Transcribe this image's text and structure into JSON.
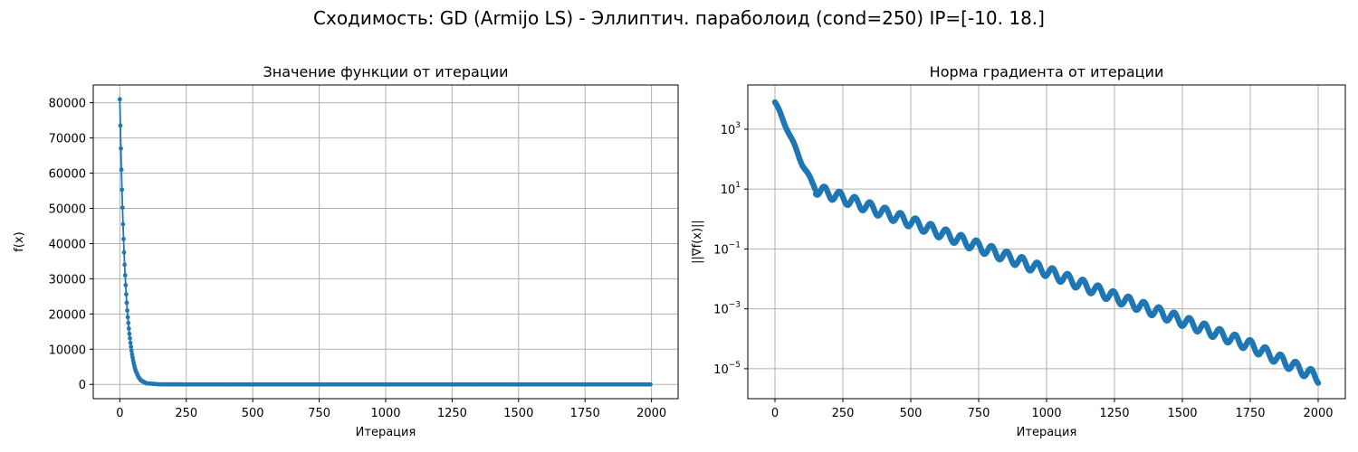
{
  "figure": {
    "title": "Сходимость: GD (Armijo LS) - Эллиптич. параболоид (cond=250) IP=[-10.  18.]"
  },
  "chart_data": [
    {
      "type": "line",
      "title": "Значение функции от итерации",
      "xlabel": "Итерация",
      "ylabel": "f(x)",
      "xlim": [
        -100,
        2100
      ],
      "ylim": [
        -4050,
        85050
      ],
      "xticks": [
        0,
        250,
        500,
        750,
        1000,
        1250,
        1500,
        1750,
        2000
      ],
      "yticks": [
        0,
        10000,
        20000,
        30000,
        40000,
        50000,
        60000,
        70000,
        80000
      ],
      "grid": true,
      "marker": "circle",
      "color": "#1f77b4",
      "series": [
        {
          "x": [
            0,
            2,
            4,
            6,
            8,
            10,
            12,
            14,
            16,
            18,
            20,
            22,
            24,
            26,
            28,
            30,
            33,
            36,
            40,
            45,
            50,
            55,
            60,
            70,
            80,
            100,
            150,
            250,
            500,
            1000,
            1500,
            2000
          ],
          "y": [
            81000,
            73500,
            67000,
            61000,
            55300,
            50200,
            45500,
            41300,
            37500,
            34000,
            31000,
            28200,
            25600,
            23200,
            21000,
            19100,
            16600,
            14400,
            11800,
            9000,
            6800,
            5100,
            3800,
            2100,
            1100,
            300,
            20,
            0,
            0,
            0,
            0,
            0
          ]
        }
      ]
    },
    {
      "type": "line",
      "title": "Норма градиента от итерации",
      "xlabel": "Итерация",
      "ylabel": "||∇f(x)||",
      "yscale": "log",
      "xlim": [
        -100,
        2100
      ],
      "ylim": [
        1e-06,
        30000
      ],
      "xticks": [
        0,
        250,
        500,
        750,
        1000,
        1250,
        1500,
        1750,
        2000
      ],
      "yticks": [
        1e-05,
        0.001,
        0.1,
        10,
        1000
      ],
      "grid": true,
      "marker": "circle",
      "color": "#1f77b4",
      "series": [
        {
          "x": [
            0,
            50,
            100,
            150,
            250,
            500,
            750,
            1000,
            1250,
            1500,
            1750,
            2000
          ],
          "y": [
            8000,
            800,
            70,
            10,
            5,
            0.8,
            0.12,
            0.018,
            0.0025,
            0.0004,
            6e-05,
            5e-06
          ]
        }
      ]
    }
  ]
}
